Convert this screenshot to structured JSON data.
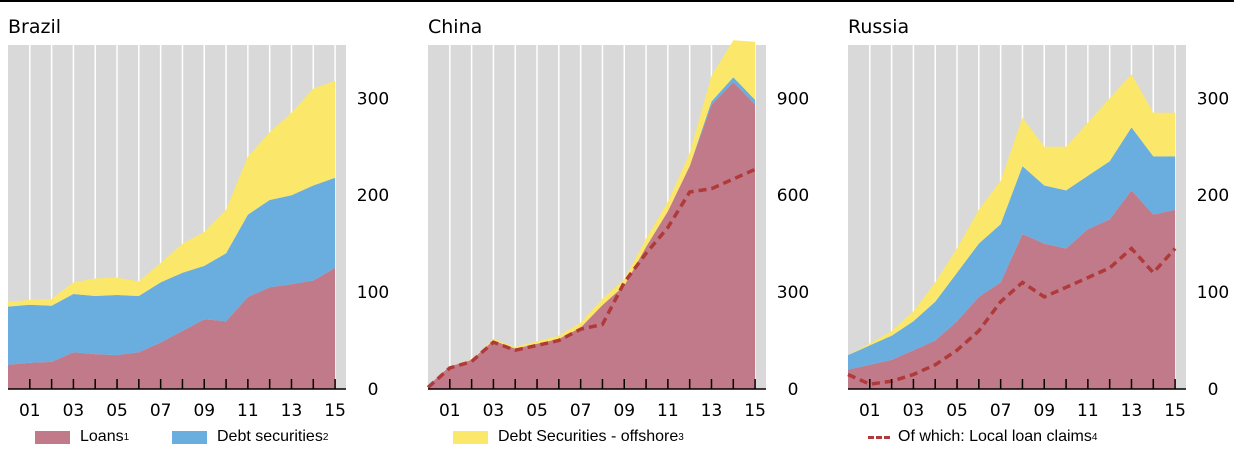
{
  "panels": [
    {
      "title": "Brazil",
      "yticks": [
        0,
        100,
        200,
        300
      ],
      "ymax": 355
    },
    {
      "title": "China",
      "yticks": [
        0,
        300,
        600,
        900
      ],
      "ymax": 1065
    },
    {
      "title": "Russia",
      "yticks": [
        0,
        100,
        200,
        300
      ],
      "ymax": 355
    }
  ],
  "xtick_labels": [
    "01",
    "03",
    "05",
    "07",
    "09",
    "11",
    "13",
    "15"
  ],
  "legend": {
    "loans": "Loans",
    "loans_note": "1",
    "debt": "Debt securities",
    "debt_note": "2",
    "offshore": "Debt Securities - offshore",
    "offshore_note": "3",
    "local": "Of which: Local loan claims",
    "local_note": "4"
  },
  "colors": {
    "loans": "#c17a8a",
    "debt": "#6aaee0",
    "offshore": "#fbe86a",
    "local": "#b03a3a",
    "plot_bg": "#d9d9d9"
  },
  "chart_data": [
    {
      "type": "area",
      "title": "Brazil",
      "x": [
        2000,
        2001,
        2002,
        2003,
        2004,
        2005,
        2006,
        2007,
        2008,
        2009,
        2010,
        2011,
        2012,
        2013,
        2014,
        2015
      ],
      "series": [
        {
          "name": "Loans",
          "values": [
            25,
            27,
            28,
            38,
            36,
            35,
            38,
            48,
            60,
            72,
            70,
            95,
            105,
            108,
            112,
            125
          ]
        },
        {
          "name": "Debt securities",
          "values": [
            60,
            60,
            58,
            60,
            60,
            62,
            58,
            62,
            60,
            55,
            70,
            85,
            90,
            92,
            98,
            93
          ]
        },
        {
          "name": "Debt Securities - offshore",
          "values": [
            5,
            5,
            7,
            12,
            18,
            18,
            15,
            20,
            30,
            35,
            45,
            60,
            70,
            85,
            100,
            100
          ]
        }
      ],
      "ylim": [
        0,
        355
      ]
    },
    {
      "type": "area",
      "title": "China",
      "x": [
        2000,
        2001,
        2002,
        2003,
        2004,
        2005,
        2006,
        2007,
        2008,
        2009,
        2010,
        2011,
        2012,
        2013,
        2014,
        2015
      ],
      "series": [
        {
          "name": "Loans",
          "values": [
            10,
            70,
            90,
            150,
            125,
            140,
            155,
            190,
            260,
            320,
            440,
            550,
            690,
            880,
            950,
            880
          ]
        },
        {
          "name": "Debt securities",
          "values": [
            0,
            0,
            0,
            0,
            0,
            0,
            0,
            0,
            0,
            0,
            0,
            0,
            0,
            10,
            15,
            15
          ]
        },
        {
          "name": "Debt Securities - offshore",
          "values": [
            0,
            0,
            2,
            5,
            5,
            8,
            10,
            15,
            20,
            20,
            25,
            30,
            40,
            80,
            115,
            180
          ]
        },
        {
          "name": "Of which: Local loan claims",
          "values": [
            5,
            65,
            85,
            145,
            120,
            135,
            150,
            185,
            200,
            330,
            420,
            500,
            610,
            620,
            650,
            680
          ]
        }
      ],
      "ylim": [
        0,
        1065
      ]
    },
    {
      "type": "area",
      "title": "Russia",
      "x": [
        2000,
        2001,
        2002,
        2003,
        2004,
        2005,
        2006,
        2007,
        2008,
        2009,
        2010,
        2011,
        2012,
        2013,
        2014,
        2015
      ],
      "series": [
        {
          "name": "Loans",
          "values": [
            20,
            25,
            30,
            40,
            50,
            70,
            95,
            110,
            160,
            150,
            145,
            165,
            175,
            205,
            180,
            185
          ]
        },
        {
          "name": "Debt securities",
          "values": [
            15,
            20,
            25,
            30,
            40,
            50,
            55,
            60,
            70,
            60,
            60,
            55,
            60,
            65,
            60,
            55
          ]
        },
        {
          "name": "Debt Securities - offshore",
          "values": [
            0,
            2,
            5,
            10,
            20,
            25,
            35,
            45,
            50,
            40,
            45,
            55,
            65,
            55,
            45,
            45
          ]
        },
        {
          "name": "Of which: Local loan claims",
          "values": [
            15,
            5,
            8,
            15,
            25,
            40,
            60,
            90,
            110,
            95,
            105,
            115,
            125,
            145,
            120,
            145
          ]
        }
      ],
      "ylim": [
        0,
        355
      ]
    }
  ]
}
